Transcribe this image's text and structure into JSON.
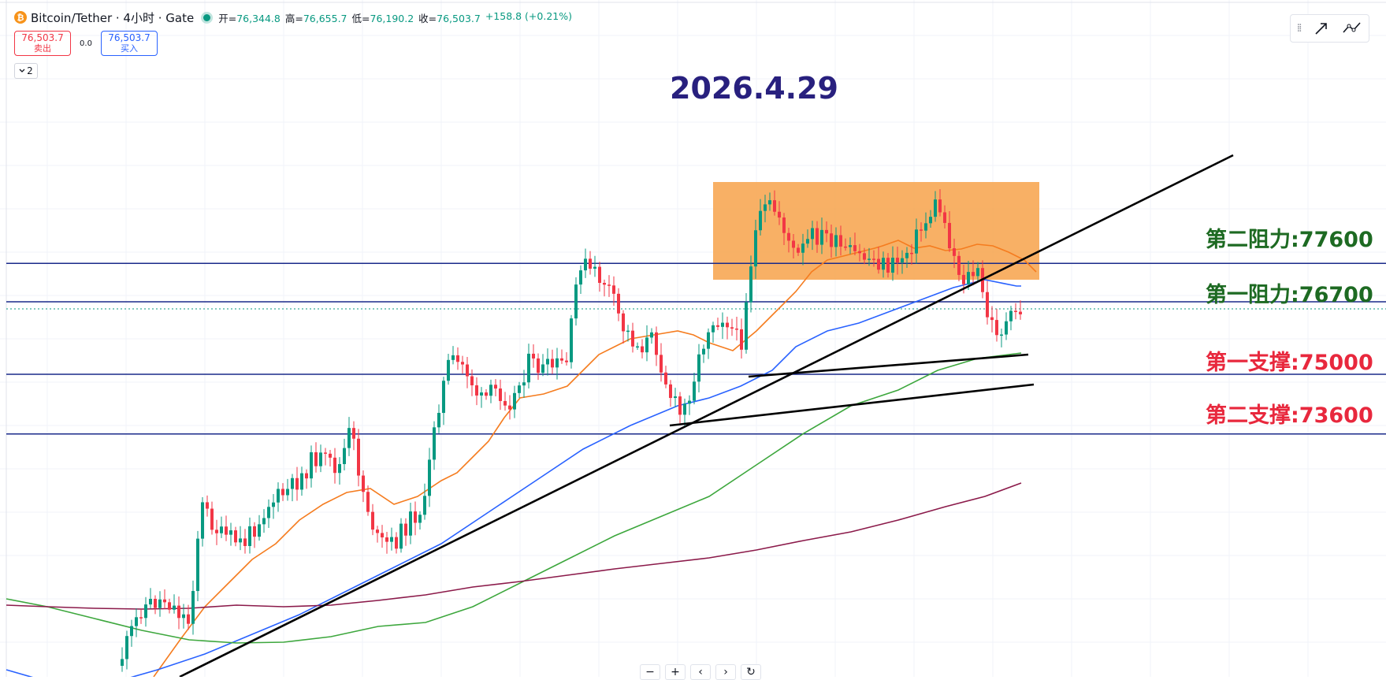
{
  "legend": {
    "coin_glyph": "₿",
    "title": "Bitcoin/Tether · 4小时 · Gate",
    "open_key": "开=",
    "open": "76,344.8",
    "high_key": "高=",
    "high": "76,655.7",
    "low_key": "低=",
    "low": "76,190.2",
    "close_key": "收=",
    "close": "76,503.7",
    "change": "+158.8 (+0.21%)"
  },
  "trade": {
    "sell_price": "76,503.7",
    "sell_label": "卖出",
    "spread": "0.0",
    "buy_price": "76,503.7",
    "buy_label": "买入"
  },
  "collapse_count": "2",
  "date_title": "2026.4.29",
  "levels": {
    "resistance2": "第二阻力:77600",
    "resistance1": "第一阻力:76700",
    "support1": "第一支撑:75000",
    "support2": "第二支撑:73600"
  },
  "nav": {
    "zoom_out": "−",
    "zoom_in": "+",
    "prev": "‹",
    "next": "›",
    "reset": "↻"
  },
  "toolbar": {
    "grip": "⁞⁞",
    "icons": [
      "drag-handle-icon",
      "draw-arrow-icon",
      "trend-tool-icon"
    ]
  },
  "colors": {
    "up": "#089981",
    "down": "#f23645",
    "level_line": "#1a2a8a",
    "ma_orange": "#f57c1f",
    "ma_blue": "#2962ff",
    "ma_green": "#3da73d",
    "ma_maroon": "#8b1a4a",
    "zone": "#f7a24a",
    "resistance_text": "#1d6a22",
    "support_text": "#e8283d",
    "title_text": "#28207e"
  },
  "chart_data": {
    "type": "candlestick",
    "symbol": "Bitcoin/Tether",
    "interval": "4小时",
    "exchange": "Gate",
    "last_price": 76503.7,
    "horizontal_levels": [
      77600,
      76700,
      75000,
      73600
    ],
    "ma_series_colors": [
      "orange",
      "blue",
      "green",
      "maroon"
    ]
  }
}
